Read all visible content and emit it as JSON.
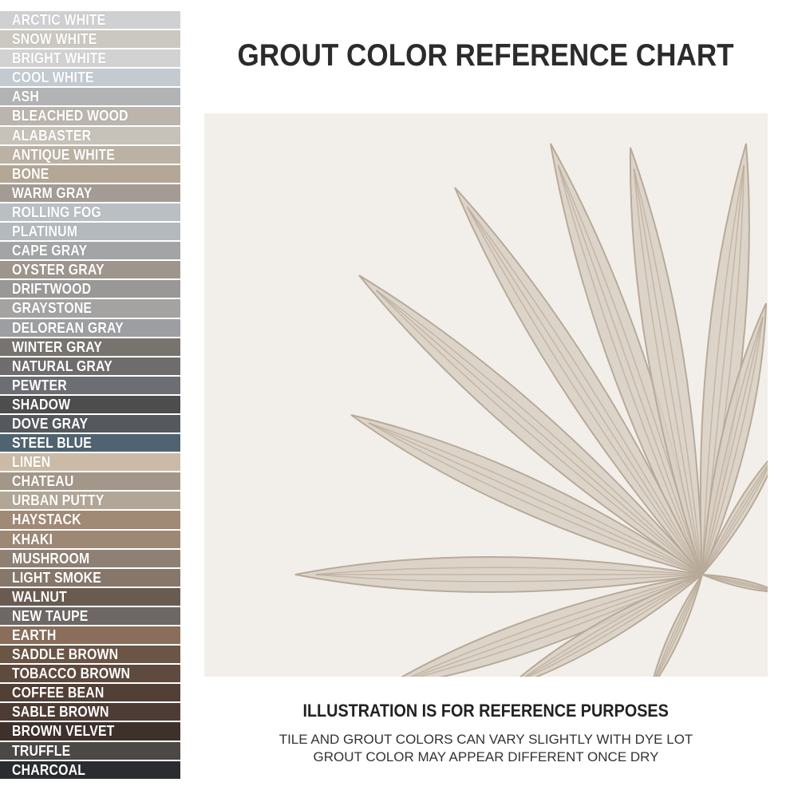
{
  "title": "GROUT COLOR REFERENCE CHART",
  "caption": {
    "heading": "ILLUSTRATION IS FOR REFERENCE PURPOSES",
    "line1": "TILE AND GROUT COLORS CAN VARY SLIGHTLY WITH DYE LOT",
    "line2": "GROUT COLOR MAY APPEAR DIFFERENT ONCE DRY"
  },
  "illustration": {
    "background": "#f2efea",
    "petal_color": "#d9cfc3",
    "vein_color": "#b8aa99"
  },
  "swatches": [
    {
      "name": "ARCTIC WHITE",
      "color": "#cfd0d1"
    },
    {
      "name": "SNOW WHITE",
      "color": "#cbc7c1"
    },
    {
      "name": "BRIGHT WHITE",
      "color": "#d3d2d2"
    },
    {
      "name": "COOL WHITE",
      "color": "#c4cbd0"
    },
    {
      "name": "ASH",
      "color": "#b2b3b4"
    },
    {
      "name": "BLEACHED WOOD",
      "color": "#bbb5ad"
    },
    {
      "name": "ALABASTER",
      "color": "#c7c2b9"
    },
    {
      "name": "ANTIQUE WHITE",
      "color": "#bcb2a4"
    },
    {
      "name": "BONE",
      "color": "#b5a796"
    },
    {
      "name": "WARM GRAY",
      "color": "#a49b95"
    },
    {
      "name": "ROLLING FOG",
      "color": "#b9bfc3"
    },
    {
      "name": "PLATINUM",
      "color": "#b3b9bd"
    },
    {
      "name": "CAPE GRAY",
      "color": "#a3a4a5"
    },
    {
      "name": "OYSTER GRAY",
      "color": "#9e968d"
    },
    {
      "name": "DRIFTWOOD",
      "color": "#9a9896"
    },
    {
      "name": "GRAYSTONE",
      "color": "#a4a3a2"
    },
    {
      "name": "DELOREAN GRAY",
      "color": "#9d9ea1"
    },
    {
      "name": "WINTER GRAY",
      "color": "#77736f"
    },
    {
      "name": "NATURAL GRAY",
      "color": "#6e6d6b"
    },
    {
      "name": "PEWTER",
      "color": "#6d6e74"
    },
    {
      "name": "SHADOW",
      "color": "#4d4d4e"
    },
    {
      "name": "DOVE GRAY",
      "color": "#55585c"
    },
    {
      "name": "STEEL BLUE",
      "color": "#4f6370"
    },
    {
      "name": "LINEN",
      "color": "#cbbba6"
    },
    {
      "name": "CHATEAU",
      "color": "#a49789"
    },
    {
      "name": "URBAN PUTTY",
      "color": "#b2a696"
    },
    {
      "name": "HAYSTACK",
      "color": "#a18a75"
    },
    {
      "name": "KHAKI",
      "color": "#9d8875"
    },
    {
      "name": "MUSHROOM",
      "color": "#8e8073"
    },
    {
      "name": "LIGHT SMOKE",
      "color": "#86776a"
    },
    {
      "name": "WALNUT",
      "color": "#6a5b51"
    },
    {
      "name": "NEW TAUPE",
      "color": "#6d6765"
    },
    {
      "name": "EARTH",
      "color": "#8a6e5b"
    },
    {
      "name": "SADDLE BROWN",
      "color": "#6b5545"
    },
    {
      "name": "TOBACCO BROWN",
      "color": "#5e4a3e"
    },
    {
      "name": "COFFEE BEAN",
      "color": "#523f35"
    },
    {
      "name": "SABLE BROWN",
      "color": "#4d3c35"
    },
    {
      "name": "BROWN VELVET",
      "color": "#3e302b"
    },
    {
      "name": "TRUFFLE",
      "color": "#4b4845"
    },
    {
      "name": "CHARCOAL",
      "color": "#2b2c30"
    }
  ]
}
